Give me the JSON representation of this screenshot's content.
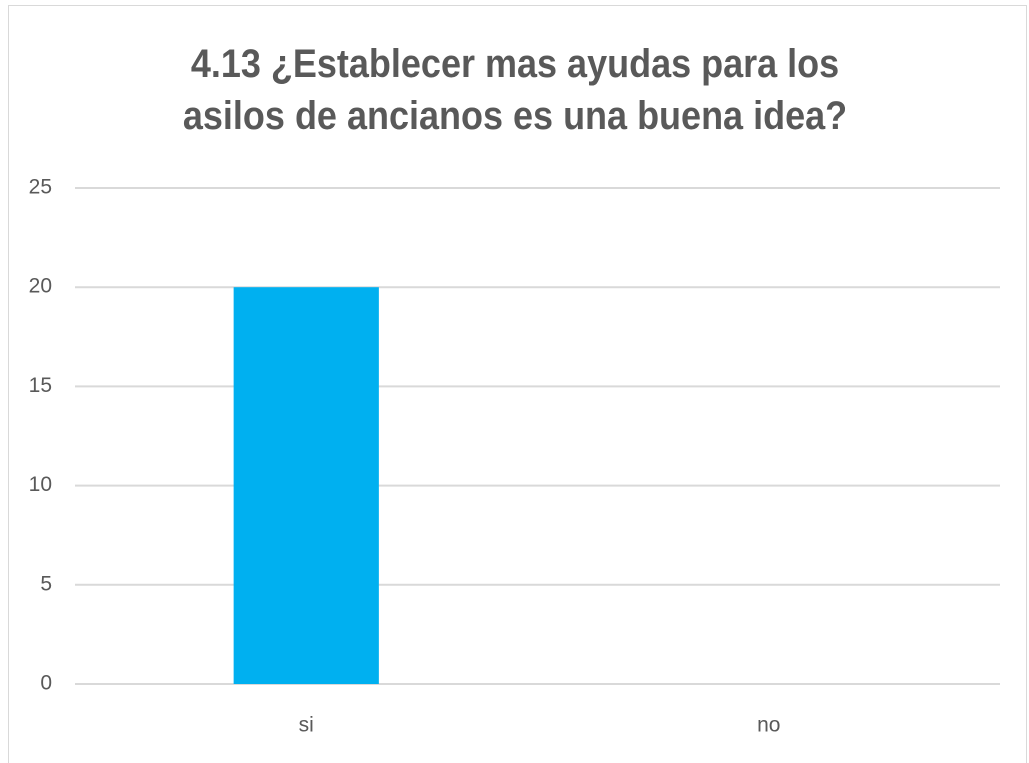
{
  "chart_data": {
    "type": "bar",
    "title": "4.13 ¿Establecer mas ayudas para los asilos de ancianos es una buena idea?",
    "categories": [
      "si",
      "no"
    ],
    "values": [
      20,
      0
    ],
    "color": "#00b0f0",
    "ylim": [
      0,
      25
    ],
    "yticks": [
      0,
      5,
      10,
      15,
      20,
      25
    ],
    "grid": true
  }
}
